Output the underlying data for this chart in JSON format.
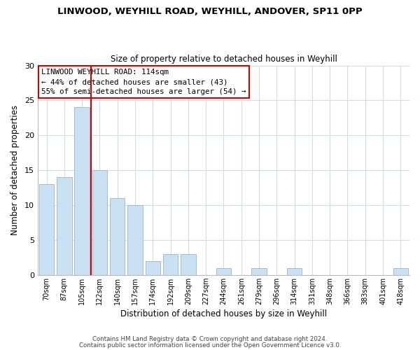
{
  "title": "LINWOOD, WEYHILL ROAD, WEYHILL, ANDOVER, SP11 0PP",
  "subtitle": "Size of property relative to detached houses in Weyhill",
  "xlabel": "Distribution of detached houses by size in Weyhill",
  "ylabel": "Number of detached properties",
  "bar_labels": [
    "70sqm",
    "87sqm",
    "105sqm",
    "122sqm",
    "140sqm",
    "157sqm",
    "174sqm",
    "192sqm",
    "209sqm",
    "227sqm",
    "244sqm",
    "261sqm",
    "279sqm",
    "296sqm",
    "314sqm",
    "331sqm",
    "348sqm",
    "366sqm",
    "383sqm",
    "401sqm",
    "418sqm"
  ],
  "bar_values": [
    13,
    14,
    24,
    15,
    11,
    10,
    2,
    3,
    3,
    0,
    1,
    0,
    1,
    0,
    1,
    0,
    0,
    0,
    0,
    0,
    1
  ],
  "bar_color": "#c9dff2",
  "bar_edge_color": "#a0bdd8",
  "vline_color": "#cc0000",
  "ylim": [
    0,
    30
  ],
  "yticks": [
    0,
    5,
    10,
    15,
    20,
    25,
    30
  ],
  "annotation_title": "LINWOOD WEYHILL ROAD: 114sqm",
  "annotation_line1": "← 44% of detached houses are smaller (43)",
  "annotation_line2": "55% of semi-detached houses are larger (54) →",
  "box_color": "#ffffff",
  "box_edge_color": "#cc0000",
  "footer1": "Contains HM Land Registry data © Crown copyright and database right 2024.",
  "footer2": "Contains public sector information licensed under the Open Government Licence v3.0.",
  "background_color": "#ffffff",
  "grid_color": "#d0dce8",
  "vline_bar_index": 2
}
